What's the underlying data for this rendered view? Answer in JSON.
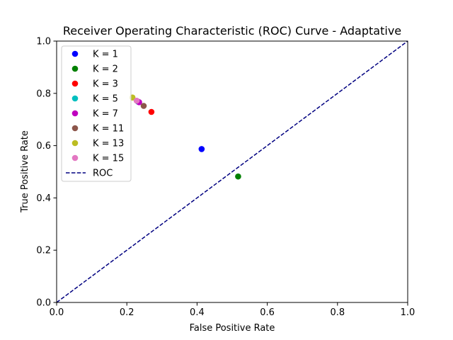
{
  "chart_data": {
    "type": "scatter",
    "title": "Receiver Operating Characteristic (ROC) Curve - Adaptative",
    "xlabel": "False Positive Rate",
    "ylabel": "True Positive Rate",
    "xlim": [
      0.0,
      1.0
    ],
    "ylim": [
      0.0,
      1.0
    ],
    "xticks": [
      "0.0",
      "0.2",
      "0.4",
      "0.6",
      "0.8",
      "1.0"
    ],
    "yticks": [
      "0.0",
      "0.2",
      "0.4",
      "0.6",
      "0.8",
      "1.0"
    ],
    "grid": false,
    "legend_position": "upper-left",
    "series": [
      {
        "name": "K = 1",
        "color": "#0000ff",
        "x": 0.413,
        "y": 0.587
      },
      {
        "name": "K = 2",
        "color": "#008000",
        "x": 0.517,
        "y": 0.482
      },
      {
        "name": "K = 3",
        "color": "#ff0000",
        "x": 0.27,
        "y": 0.729
      },
      {
        "name": "K = 5",
        "color": "#00bfbf",
        "x": 0.232,
        "y": 0.768
      },
      {
        "name": "K = 7",
        "color": "#bf00bf",
        "x": 0.235,
        "y": 0.766
      },
      {
        "name": "K = 11",
        "color": "#8c564b",
        "x": 0.248,
        "y": 0.752
      },
      {
        "name": "K = 13",
        "color": "#bcbd22",
        "x": 0.216,
        "y": 0.784
      },
      {
        "name": "K = 15",
        "color": "#e377c2",
        "x": 0.228,
        "y": 0.772
      }
    ],
    "reference_line": {
      "name": "ROC",
      "color": "#000080",
      "style": "dashed",
      "x": [
        0,
        1
      ],
      "y": [
        0,
        1
      ]
    }
  }
}
